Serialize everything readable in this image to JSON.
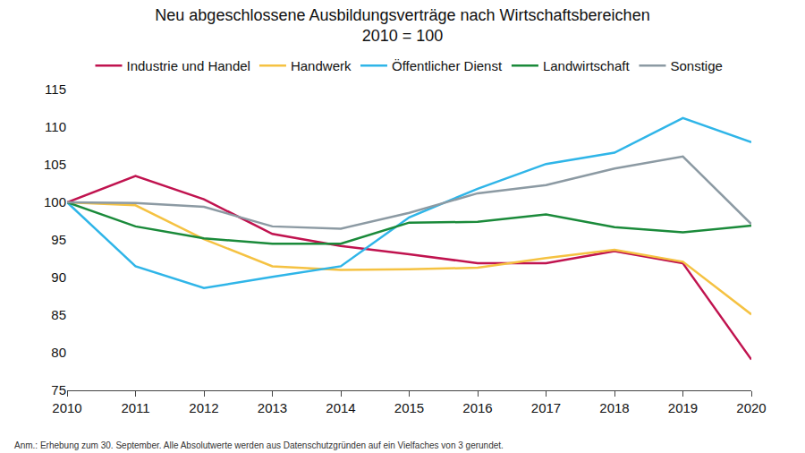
{
  "chart_data": {
    "type": "line",
    "title": "Neu abgeschlossene Ausbildungsverträge nach Wirtschaftsbereichen",
    "subtitle": "2010 = 100",
    "annotations": [
      "Anm.: Erhebung zum 30. September. Alle Absolutwerte werden aus Datenschutzgründen auf ein Vielfaches von 3 gerundet."
    ],
    "categories": [
      "2010",
      "2011",
      "2012",
      "2013",
      "2014",
      "2015",
      "2016",
      "2017",
      "2018",
      "2019",
      "2020"
    ],
    "series": [
      {
        "name": "Industrie und Handel",
        "color": "#c0134f",
        "values": [
          100,
          103.5,
          100.4,
          95.8,
          94.2,
          93.1,
          91.9,
          91.9,
          93.5,
          91.9,
          79.1
        ]
      },
      {
        "name": "Handwerk",
        "color": "#f5c242",
        "values": [
          100,
          99.6,
          95.1,
          91.5,
          91.0,
          91.1,
          91.3,
          92.6,
          93.7,
          92.1,
          85.1
        ]
      },
      {
        "name": "Öffentlicher Dienst",
        "color": "#2fb5e8",
        "values": [
          100,
          91.5,
          88.6,
          90.1,
          91.5,
          98.0,
          101.8,
          105.1,
          106.6,
          111.2,
          108.0
        ]
      },
      {
        "name": "Landwirtschaft",
        "color": "#1a8a3a",
        "values": [
          100,
          96.8,
          95.2,
          94.5,
          94.5,
          97.3,
          97.4,
          98.4,
          96.7,
          96.0,
          96.9
        ]
      },
      {
        "name": "Sonstige",
        "color": "#8c9aa3",
        "values": [
          100,
          99.9,
          99.4,
          96.8,
          96.5,
          98.6,
          101.2,
          102.3,
          104.5,
          106.1,
          97.1
        ]
      }
    ],
    "ylim": [
      75,
      115
    ],
    "yticks": [
      75,
      80,
      85,
      90,
      95,
      100,
      105,
      110,
      115
    ],
    "grid": false,
    "legend": "top"
  }
}
